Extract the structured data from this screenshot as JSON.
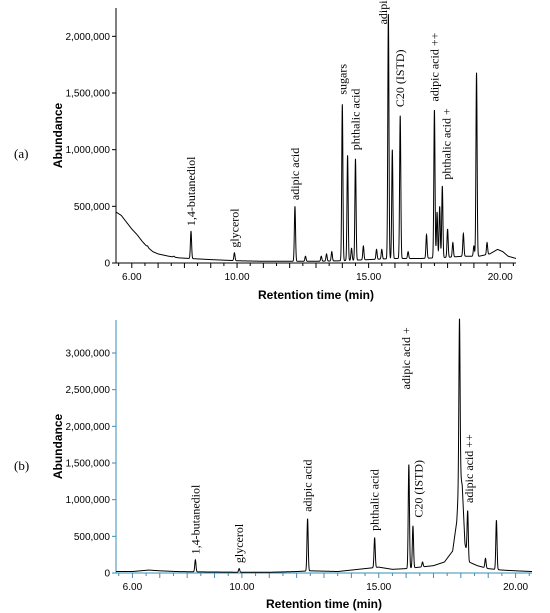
{
  "chart_data": [
    {
      "type": "line",
      "panel_label": "(a)",
      "xlabel": "Retention time (min)",
      "ylabel": "Abundance",
      "xlim": [
        5.4,
        20.6
      ],
      "ylim": [
        0,
        2250000
      ],
      "x_ticks": [
        {
          "value": 6,
          "label": "6.00"
        },
        {
          "value": 10,
          "label": "10.00"
        },
        {
          "value": 15,
          "label": "15.00"
        },
        {
          "value": 20,
          "label": "20.00"
        }
      ],
      "y_ticks": [
        {
          "value": 0,
          "label": "0"
        },
        {
          "value": 500000,
          "label": "500,000"
        },
        {
          "value": 1000000,
          "label": "1,000,000"
        },
        {
          "value": 1500000,
          "label": "1,500,000"
        },
        {
          "value": 2000000,
          "label": "2,000,000"
        }
      ],
      "baseline": [
        [
          5.4,
          450000
        ],
        [
          5.6,
          420000
        ],
        [
          5.8,
          360000
        ],
        [
          6.0,
          300000
        ],
        [
          6.2,
          250000
        ],
        [
          6.4,
          190000
        ],
        [
          6.6,
          140000
        ],
        [
          6.8,
          100000
        ],
        [
          7.0,
          80000
        ],
        [
          7.4,
          60000
        ],
        [
          7.8,
          45000
        ],
        [
          8.2,
          40000
        ],
        [
          9.0,
          30000
        ],
        [
          10.0,
          20000
        ],
        [
          11.0,
          15000
        ],
        [
          12.0,
          15000
        ],
        [
          13.0,
          15000
        ],
        [
          14.0,
          20000
        ],
        [
          15.0,
          30000
        ],
        [
          16.0,
          40000
        ],
        [
          17.0,
          40000
        ],
        [
          18.0,
          50000
        ],
        [
          18.6,
          60000
        ],
        [
          19.2,
          60000
        ],
        [
          19.6,
          80000
        ],
        [
          19.9,
          120000
        ],
        [
          20.1,
          100000
        ],
        [
          20.3,
          60000
        ],
        [
          20.6,
          40000
        ]
      ],
      "peaks": [
        {
          "x": 6.6,
          "y": 150000
        },
        {
          "x": 7.6,
          "y": 60000
        },
        {
          "x": 8.25,
          "y": 280000
        },
        {
          "x": 9.9,
          "y": 90000
        },
        {
          "x": 12.2,
          "y": 500000
        },
        {
          "x": 12.6,
          "y": 60000
        },
        {
          "x": 13.2,
          "y": 60000
        },
        {
          "x": 13.4,
          "y": 80000
        },
        {
          "x": 13.6,
          "y": 100000
        },
        {
          "x": 14.0,
          "y": 1400000
        },
        {
          "x": 14.2,
          "y": 950000
        },
        {
          "x": 14.35,
          "y": 130000
        },
        {
          "x": 14.5,
          "y": 920000
        },
        {
          "x": 14.8,
          "y": 150000
        },
        {
          "x": 15.3,
          "y": 120000
        },
        {
          "x": 15.5,
          "y": 120000
        },
        {
          "x": 15.75,
          "y": 2200000
        },
        {
          "x": 15.9,
          "y": 1000000
        },
        {
          "x": 16.2,
          "y": 1300000
        },
        {
          "x": 16.5,
          "y": 100000
        },
        {
          "x": 17.2,
          "y": 250000
        },
        {
          "x": 17.5,
          "y": 1350000
        },
        {
          "x": 17.6,
          "y": 450000
        },
        {
          "x": 17.7,
          "y": 500000
        },
        {
          "x": 17.8,
          "y": 680000
        },
        {
          "x": 18.0,
          "y": 300000
        },
        {
          "x": 18.2,
          "y": 180000
        },
        {
          "x": 18.6,
          "y": 260000
        },
        {
          "x": 19.0,
          "y": 150000
        },
        {
          "x": 19.1,
          "y": 1680000
        },
        {
          "x": 19.5,
          "y": 180000
        }
      ],
      "annotations": [
        {
          "text": "1,4-butanediol",
          "x": 8.25,
          "y": 290000
        },
        {
          "text": "glycerol",
          "x": 9.9,
          "y": 100000
        },
        {
          "text": "adipic acid",
          "x": 12.2,
          "y": 520000
        },
        {
          "text": "sugars",
          "x": 14.0,
          "y": 1450000
        },
        {
          "text": "phthalic acid",
          "x": 14.5,
          "y": 960000
        },
        {
          "text": "adipic acid +",
          "x": 15.55,
          "y": 2070000
        },
        {
          "text": "C20 (ISTD)",
          "x": 16.2,
          "y": 1340000
        },
        {
          "text": "adipic acid ++",
          "x": 17.5,
          "y": 1390000
        },
        {
          "text": "phthalic acid +",
          "x": 17.95,
          "y": 700000
        }
      ],
      "colors": {
        "line": "#000000",
        "axis": "#000000"
      }
    },
    {
      "type": "line",
      "panel_label": "(b)",
      "xlabel": "Retention time (min)",
      "ylabel": "Abundance",
      "xlim": [
        5.4,
        20.6
      ],
      "ylim": [
        0,
        3450000
      ],
      "x_ticks": [
        {
          "value": 6,
          "label": "6.00"
        },
        {
          "value": 10,
          "label": "10.00"
        },
        {
          "value": 15,
          "label": "15.00"
        },
        {
          "value": 20,
          "label": "20.00"
        }
      ],
      "y_ticks": [
        {
          "value": 0,
          "label": "0"
        },
        {
          "value": 500000,
          "label": "500,000"
        },
        {
          "value": 1000000,
          "label": "1,000,000"
        },
        {
          "value": 1500000,
          "label": "1,500,000"
        },
        {
          "value": 2000000,
          "label": "2,000,000"
        },
        {
          "value": 2500000,
          "label": "2,500,000"
        },
        {
          "value": 3000000,
          "label": "3,000,000"
        }
      ],
      "baseline": [
        [
          5.4,
          20000
        ],
        [
          6.0,
          20000
        ],
        [
          6.6,
          40000
        ],
        [
          7.0,
          30000
        ],
        [
          7.6,
          20000
        ],
        [
          8.5,
          15000
        ],
        [
          10.0,
          10000
        ],
        [
          11.0,
          10000
        ],
        [
          12.0,
          20000
        ],
        [
          12.5,
          30000
        ],
        [
          13.5,
          20000
        ],
        [
          14.5,
          60000
        ],
        [
          15.0,
          80000
        ],
        [
          15.5,
          50000
        ],
        [
          16.0,
          60000
        ],
        [
          16.5,
          80000
        ],
        [
          17.0,
          100000
        ],
        [
          17.4,
          150000
        ],
        [
          17.7,
          300000
        ],
        [
          17.85,
          700000
        ],
        [
          17.95,
          1400000
        ],
        [
          18.05,
          1200000
        ],
        [
          18.15,
          400000
        ],
        [
          18.3,
          150000
        ],
        [
          18.6,
          100000
        ],
        [
          19.0,
          60000
        ],
        [
          19.5,
          40000
        ],
        [
          20.0,
          30000
        ],
        [
          20.6,
          20000
        ]
      ],
      "peaks": [
        {
          "x": 8.3,
          "y": 180000
        },
        {
          "x": 9.9,
          "y": 60000
        },
        {
          "x": 12.4,
          "y": 740000
        },
        {
          "x": 14.85,
          "y": 480000
        },
        {
          "x": 16.1,
          "y": 1480000
        },
        {
          "x": 16.25,
          "y": 640000
        },
        {
          "x": 16.6,
          "y": 150000
        },
        {
          "x": 17.95,
          "y": 3480000
        },
        {
          "x": 18.25,
          "y": 850000
        },
        {
          "x": 18.9,
          "y": 200000
        },
        {
          "x": 19.3,
          "y": 720000
        }
      ],
      "annotations": [
        {
          "text": "1,4-butanediol",
          "x": 8.3,
          "y": 200000
        },
        {
          "text": "glycerol",
          "x": 9.9,
          "y": 80000
        },
        {
          "text": "adipic acid",
          "x": 12.4,
          "y": 780000
        },
        {
          "text": "phthalic acid",
          "x": 14.85,
          "y": 520000
        },
        {
          "text": "adipic acid +",
          "x": 16.0,
          "y": 2450000
        },
        {
          "text": "C20 (ISTD)",
          "x": 16.45,
          "y": 700000
        },
        {
          "text": "adipic acid ++",
          "x": 18.3,
          "y": 900000
        }
      ],
      "colors": {
        "line": "#000000",
        "axis": "#3a8fb7"
      }
    }
  ]
}
